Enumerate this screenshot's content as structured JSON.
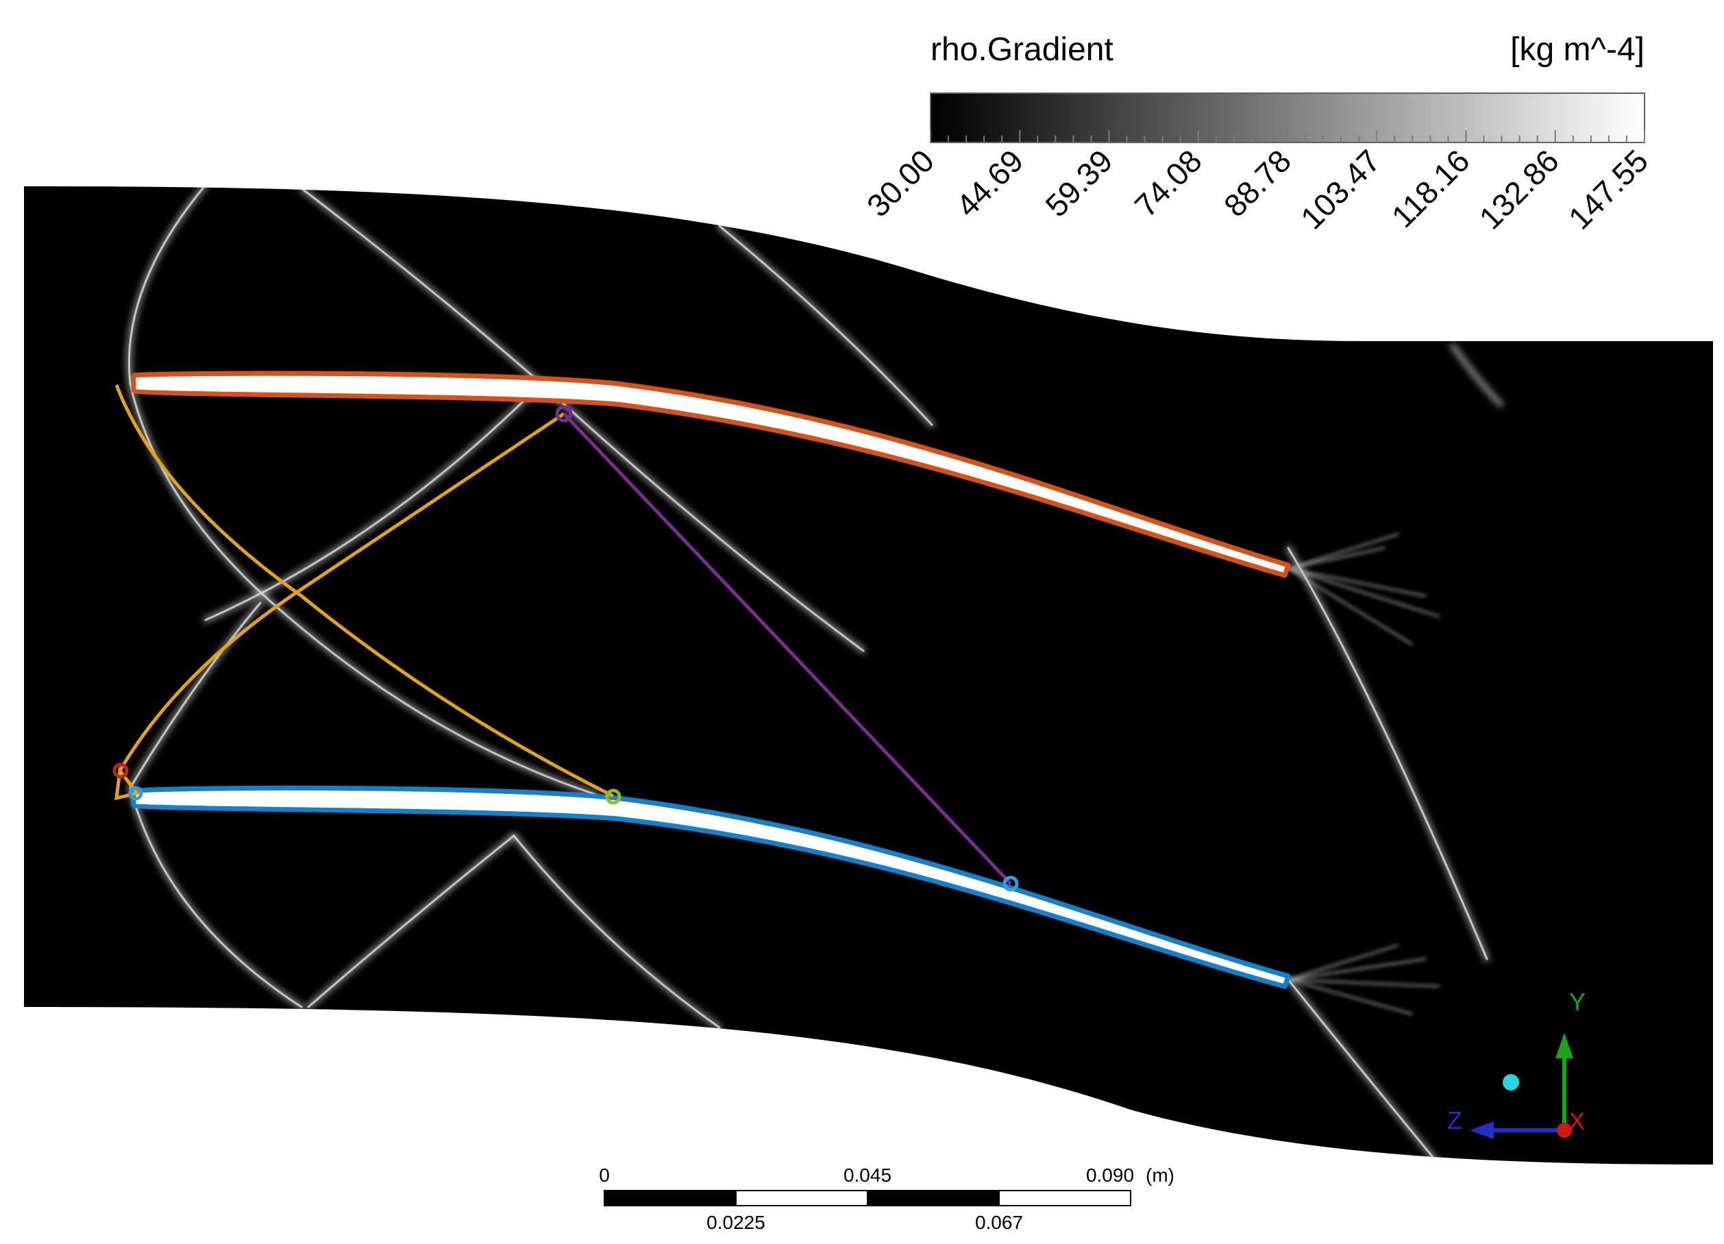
{
  "legend": {
    "variable": "rho.Gradient",
    "unit": "[kg m^-4]",
    "ticks": [
      "30.00",
      "44.69",
      "59.39",
      "74.08",
      "88.78",
      "103.47",
      "118.16",
      "132.86",
      "147.55"
    ],
    "range": [
      30.0,
      147.55
    ],
    "colormap": "grayscale",
    "color_min": "#000000",
    "color_max": "#ffffff"
  },
  "scale_bar": {
    "top_labels": [
      "0",
      "0.045",
      "0.090"
    ],
    "bottom_labels": [
      "0.0225",
      "0.067"
    ],
    "unit": "(m)"
  },
  "axes_triad": {
    "y_label": "Y",
    "z_label": "Z",
    "x_label": "X",
    "y_color": "#19a519",
    "z_color": "#1f2fc8",
    "x_color": "#d01818",
    "center_dot_color": "#29d6e0"
  },
  "colors": {
    "upper_blade_outline": "#d2541c",
    "lower_blade_outline": "#1a7fc9",
    "characteristic_lines": "#e3a21d",
    "connector_line": "#7a2c8f",
    "marker_purple": "#7a2c8f",
    "marker_green": "#8bbf2a",
    "marker_blue": "#3a9bd8",
    "marker_red": "#b22a2a"
  }
}
